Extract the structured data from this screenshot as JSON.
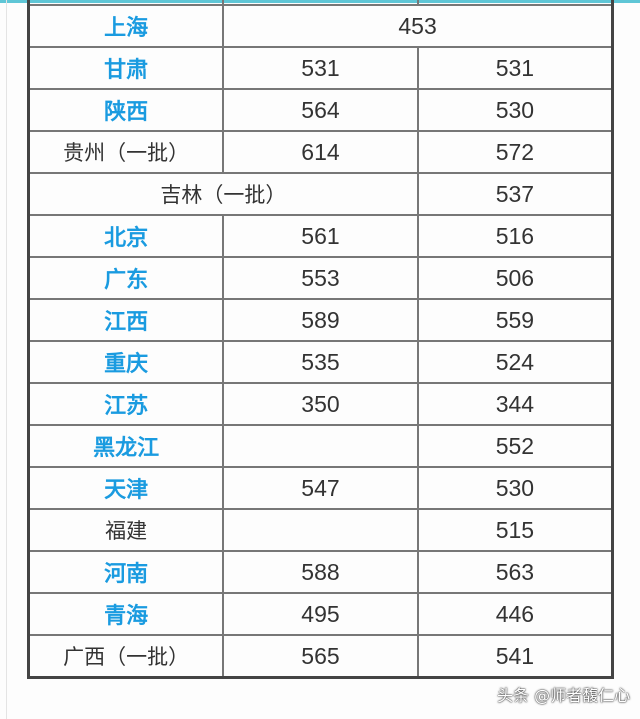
{
  "watermark": "头条 @师者馥仁心",
  "colors": {
    "province_highlight": "#1a9be0",
    "text": "#333333"
  },
  "rows": [
    {
      "province": "上海",
      "highlight": true,
      "merged_value": "453"
    },
    {
      "province": "甘肃",
      "highlight": true,
      "v1": "531",
      "v2": "531"
    },
    {
      "province": "陕西",
      "highlight": true,
      "v1": "564",
      "v2": "530"
    },
    {
      "province": "贵州（一批）",
      "highlight": false,
      "v1": "614",
      "v2": "572"
    },
    {
      "province": "吉林（一批）",
      "highlight": false,
      "merged_label": true,
      "v2": "537"
    },
    {
      "province": "北京",
      "highlight": true,
      "v1": "561",
      "v2": "516"
    },
    {
      "province": "广东",
      "highlight": true,
      "v1": "553",
      "v2": "506"
    },
    {
      "province": "江西",
      "highlight": true,
      "v1": "589",
      "v2": "559"
    },
    {
      "province": "重庆",
      "highlight": true,
      "v1": "535",
      "v2": "524"
    },
    {
      "province": "江苏",
      "highlight": true,
      "v1": "350",
      "v2": "344"
    },
    {
      "province": "黑龙江",
      "highlight": true,
      "v1": "",
      "v2": "552"
    },
    {
      "province": "天津",
      "highlight": true,
      "v1": "547",
      "v2": "530"
    },
    {
      "province": "福建",
      "highlight": false,
      "v1": "",
      "v2": "515"
    },
    {
      "province": "河南",
      "highlight": true,
      "v1": "588",
      "v2": "563"
    },
    {
      "province": "青海",
      "highlight": true,
      "v1": "495",
      "v2": "446"
    },
    {
      "province": "广西（一批）",
      "highlight": false,
      "v1": "565",
      "v2": "541"
    }
  ]
}
